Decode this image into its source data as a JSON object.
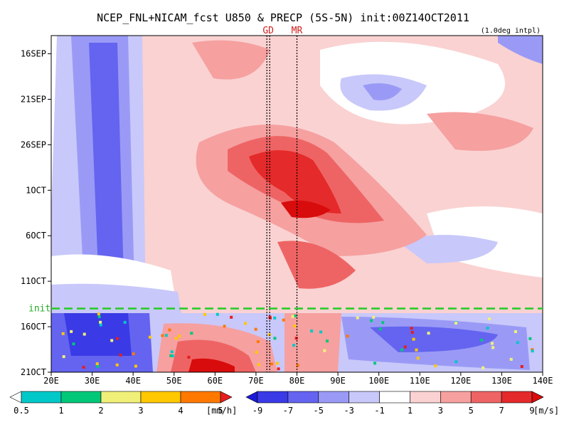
{
  "chart_data": {
    "type": "heatmap",
    "title": "NCEP_FNL+NICAM_fcst U850 & PRECP (5S-5N) init:00Z14OCT2011",
    "subtitle": "(1.0deg intpl)",
    "x_ticks": [
      "20E",
      "30E",
      "40E",
      "50E",
      "60E",
      "70E",
      "80E",
      "90E",
      "100E",
      "110E",
      "120E",
      "130E",
      "140E"
    ],
    "x_range": [
      20,
      140
    ],
    "y_ticks": [
      "16SEP",
      "21SEP",
      "26SEP",
      "1OCT",
      "6OCT",
      "11OCT",
      "16OCT",
      "21OCT"
    ],
    "y_range": [
      "2011-09-14",
      "2011-10-21"
    ],
    "init_line": {
      "label": "init",
      "date": "2011-10-14"
    },
    "site_markers": [
      {
        "label": "GD",
        "lon": 73
      },
      {
        "label": "MR",
        "lon": 80
      }
    ],
    "u850_colorbar": {
      "levels": [
        "-9",
        "-7",
        "-5",
        "-3",
        "-1",
        "1",
        "3",
        "5",
        "7",
        "9"
      ],
      "unit": "[m/s]",
      "colors": [
        "#1a1ad8",
        "#3a3ae6",
        "#6464f0",
        "#9a9af6",
        "#c8c8fa",
        "#ffffff",
        "#fad2d2",
        "#f6a0a0",
        "#ee6464",
        "#e42a2a",
        "#d80c0c"
      ]
    },
    "precip_colorbar": {
      "levels": [
        "0.5",
        "1",
        "2",
        "3",
        "4",
        "5"
      ],
      "unit": "[mm/h]",
      "colors": [
        "#ffffff",
        "#00c8c8",
        "#00c878",
        "#f0f078",
        "#ffc800",
        "#ff7800",
        "#e61e1e"
      ]
    }
  }
}
